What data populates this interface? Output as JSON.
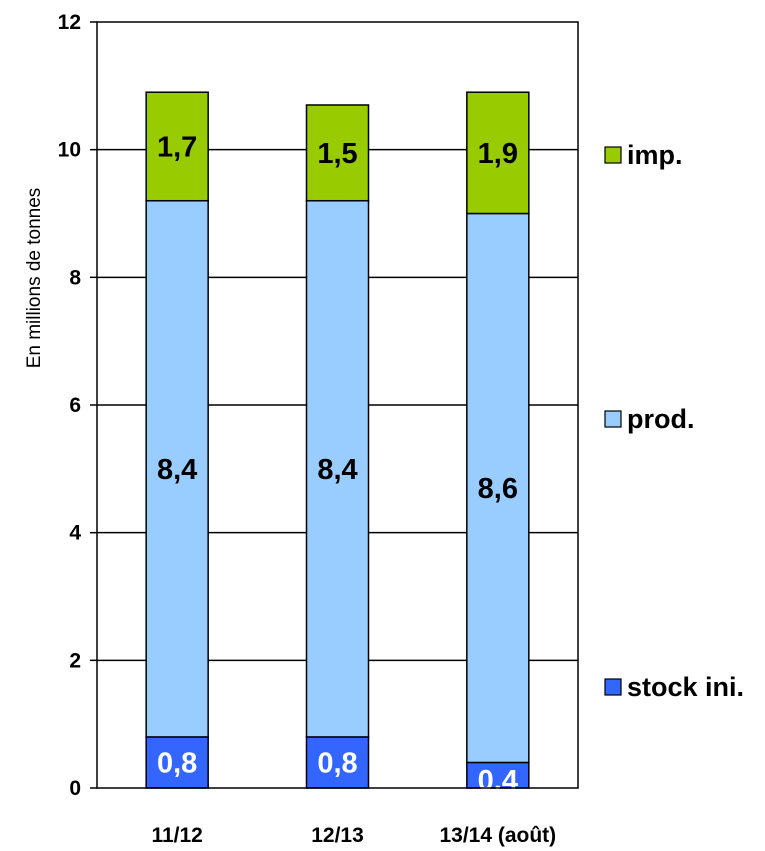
{
  "chart_data": {
    "type": "bar",
    "stacked": true,
    "title": "",
    "xlabel": "",
    "ylabel": "En millions de tonnes",
    "ylim": [
      0,
      12
    ],
    "yticks": [
      "0",
      "2",
      "4",
      "6",
      "8",
      "10",
      "12"
    ],
    "grid": true,
    "legend_position": "right",
    "categories": [
      "11/12",
      "12/13",
      "13/14 (août)"
    ],
    "series": [
      {
        "name": "stock ini.",
        "color": "#3366ff",
        "label_color": "#ffffff",
        "values": [
          0.8,
          0.8,
          0.4
        ],
        "labels": [
          "0,8",
          "0,8",
          "0,4"
        ]
      },
      {
        "name": "prod.",
        "color": "#99ccff",
        "label_color": "#000000",
        "values": [
          8.4,
          8.4,
          8.6
        ],
        "labels": [
          "8,4",
          "8,4",
          "8,6"
        ]
      },
      {
        "name": "imp.",
        "color": "#99cc00",
        "label_color": "#000000",
        "values": [
          1.7,
          1.5,
          1.9
        ],
        "labels": [
          "1,7",
          "1,5",
          "1,9"
        ]
      }
    ]
  }
}
